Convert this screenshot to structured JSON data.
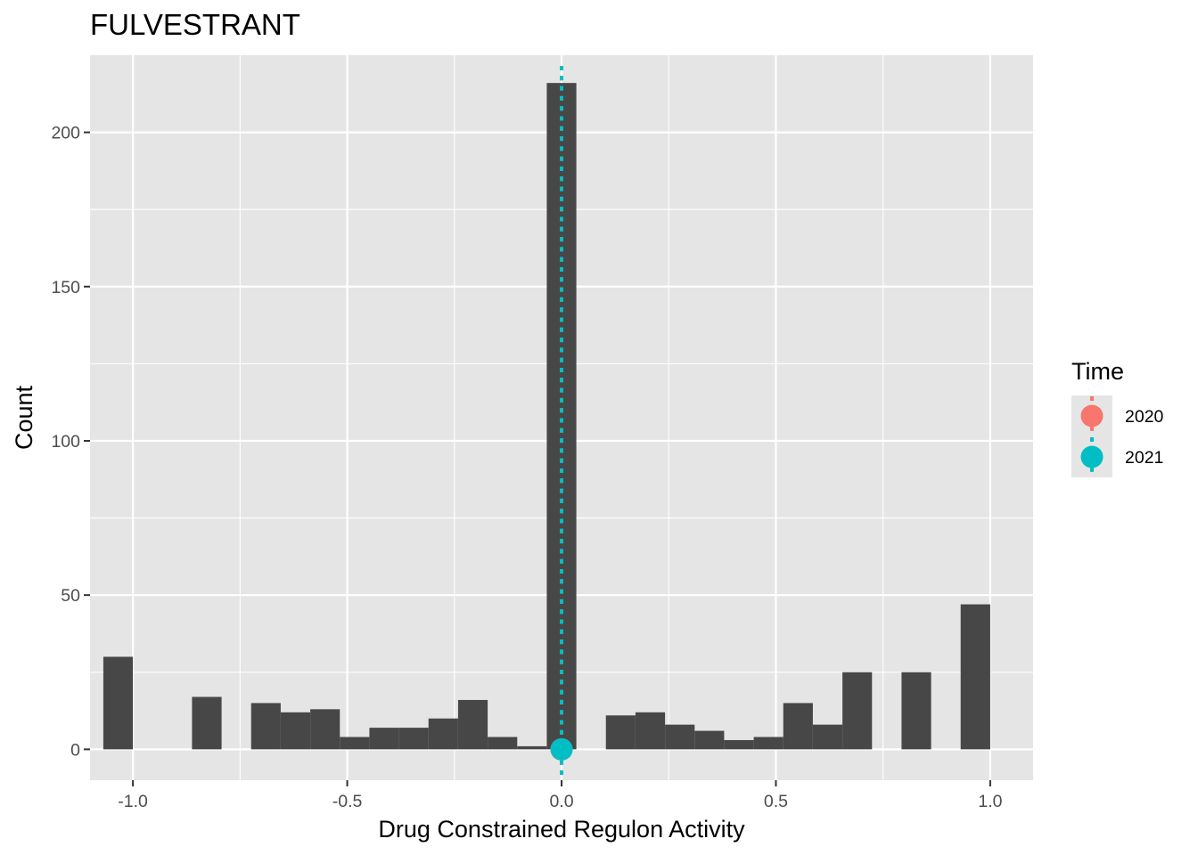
{
  "chart_data": {
    "type": "bar",
    "title": "FULVESTRANT",
    "xlabel": "Drug Constrained Regulon Activity",
    "ylabel": "Count",
    "xlim": [
      -1.1,
      1.1
    ],
    "ylim": [
      -10,
      225
    ],
    "x_ticks": [
      "-1.0",
      "-0.5",
      "0.0",
      "0.5",
      "1.0"
    ],
    "y_ticks": [
      "0",
      "50",
      "100",
      "150",
      "200"
    ],
    "grid": true,
    "bar_color": "#474747",
    "panel_color": "#e5e5e5",
    "bin_width": 0.06897,
    "bins": [
      {
        "x": -1.0345,
        "count": 30
      },
      {
        "x": -0.9655,
        "count": 0
      },
      {
        "x": -0.8966,
        "count": 0
      },
      {
        "x": -0.8276,
        "count": 17
      },
      {
        "x": -0.7586,
        "count": 0
      },
      {
        "x": -0.6897,
        "count": 15
      },
      {
        "x": -0.6207,
        "count": 12
      },
      {
        "x": -0.5517,
        "count": 13
      },
      {
        "x": -0.4828,
        "count": 4
      },
      {
        "x": -0.4138,
        "count": 7
      },
      {
        "x": -0.3448,
        "count": 7
      },
      {
        "x": -0.2759,
        "count": 10
      },
      {
        "x": -0.2069,
        "count": 16
      },
      {
        "x": -0.1379,
        "count": 4
      },
      {
        "x": -0.069,
        "count": 1
      },
      {
        "x": 0.0,
        "count": 216
      },
      {
        "x": 0.069,
        "count": 0
      },
      {
        "x": 0.1379,
        "count": 11
      },
      {
        "x": 0.2069,
        "count": 12
      },
      {
        "x": 0.2759,
        "count": 8
      },
      {
        "x": 0.3448,
        "count": 6
      },
      {
        "x": 0.4138,
        "count": 3
      },
      {
        "x": 0.4828,
        "count": 4
      },
      {
        "x": 0.5517,
        "count": 15
      },
      {
        "x": 0.6207,
        "count": 8
      },
      {
        "x": 0.6897,
        "count": 25
      },
      {
        "x": 0.7586,
        "count": 0
      },
      {
        "x": 0.8276,
        "count": 25
      },
      {
        "x": 0.8966,
        "count": 0
      },
      {
        "x": 0.9655,
        "count": 47
      }
    ],
    "reference_lines": [
      {
        "time": "2020",
        "x": 0.0,
        "color": "#F8766D"
      },
      {
        "time": "2021",
        "x": 0.0,
        "color": "#00BFC4"
      }
    ],
    "points": [
      {
        "time": "2020",
        "x": 0.0,
        "y": 0,
        "color": "#F8766D"
      },
      {
        "time": "2021",
        "x": 0.0,
        "y": 0,
        "color": "#00BFC4"
      }
    ],
    "legend": {
      "title": "Time",
      "position": "right",
      "items": [
        {
          "label": "2020",
          "color": "#F8766D"
        },
        {
          "label": "2021",
          "color": "#00BFC4"
        }
      ]
    }
  }
}
